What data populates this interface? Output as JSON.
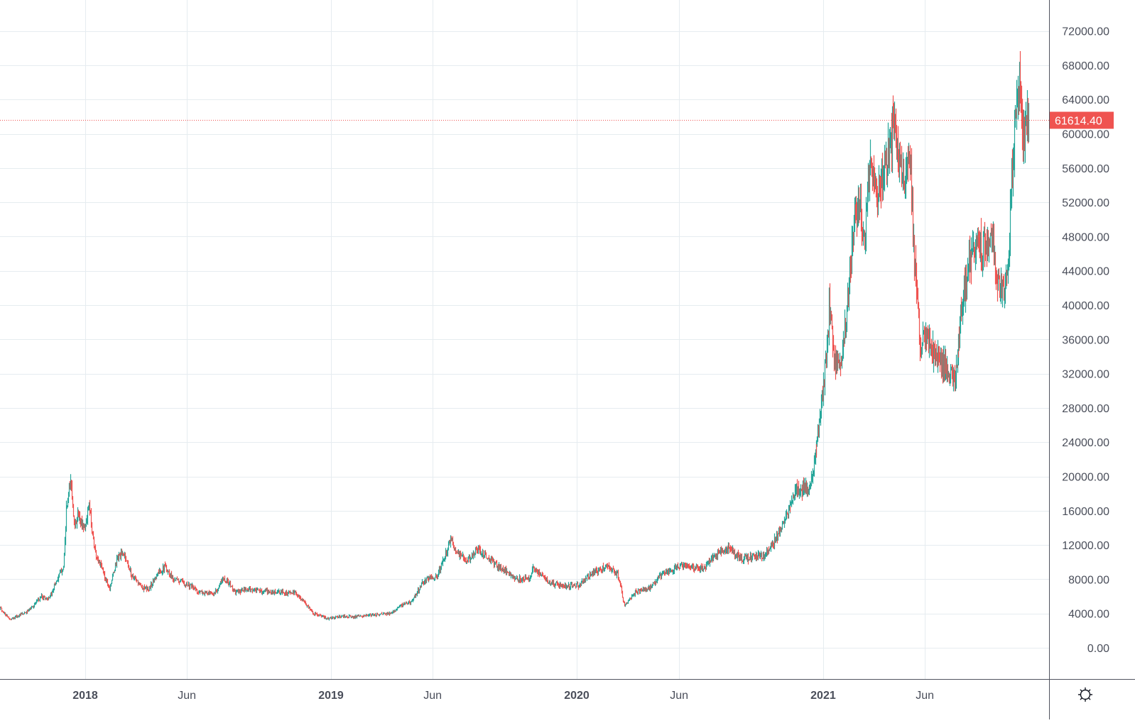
{
  "chart_data": {
    "type": "candlestick",
    "title": "",
    "xlabel": "",
    "ylabel": "",
    "interval": "1D",
    "ylim": [
      -3800,
      75600
    ],
    "grid": true,
    "legend": null,
    "y_ticks": [
      "72000.00",
      "68000.00",
      "64000.00",
      "60000.00",
      "56000.00",
      "52000.00",
      "48000.00",
      "44000.00",
      "40000.00",
      "36000.00",
      "32000.00",
      "28000.00",
      "24000.00",
      "20000.00",
      "16000.00",
      "12000.00",
      "8000.00",
      "4000.00",
      "0.00"
    ],
    "x_ticks": [
      {
        "label": "2018",
        "date": "2018-01-01",
        "bold": true
      },
      {
        "label": "Jun",
        "date": "2018-06-01",
        "bold": false
      },
      {
        "label": "2019",
        "date": "2019-01-01",
        "bold": true
      },
      {
        "label": "Jun",
        "date": "2019-06-01",
        "bold": false
      },
      {
        "label": "2020",
        "date": "2020-01-01",
        "bold": true
      },
      {
        "label": "Jun",
        "date": "2020-06-01",
        "bold": false
      },
      {
        "label": "2021",
        "date": "2021-01-01",
        "bold": true
      },
      {
        "label": "Jun",
        "date": "2021-06-01",
        "bold": false
      }
    ],
    "last_price": 61614.4,
    "last_price_label": "61614.40",
    "colors": {
      "up": "#26a69a",
      "down": "#ef5350",
      "grid": "#e6ecf0",
      "axis": "#50535e",
      "axis_text": "#4a4e5a",
      "last_price": "#ef5350",
      "background": "#ffffff"
    },
    "approx_close_series": {
      "description": "Approximate daily close path read from the chart (date, close)",
      "points": [
        [
          "2017-08-26",
          4700
        ],
        [
          "2017-09-11",
          3300
        ],
        [
          "2017-10-07",
          4200
        ],
        [
          "2017-10-28",
          6000
        ],
        [
          "2017-11-08",
          5700
        ],
        [
          "2017-11-18",
          7600
        ],
        [
          "2017-11-29",
          9500
        ],
        [
          "2017-12-04",
          16000
        ],
        [
          "2017-12-10",
          19500
        ],
        [
          "2017-12-16",
          14000
        ],
        [
          "2017-12-20",
          15500
        ],
        [
          "2017-12-31",
          14000
        ],
        [
          "2018-01-06",
          16500
        ],
        [
          "2018-01-16",
          11000
        ],
        [
          "2018-01-26",
          9000
        ],
        [
          "2018-02-06",
          7000
        ],
        [
          "2018-02-17",
          10500
        ],
        [
          "2018-02-27",
          11000
        ],
        [
          "2018-03-10",
          8500
        ],
        [
          "2018-03-26",
          7000
        ],
        [
          "2018-04-05",
          6800
        ],
        [
          "2018-04-16",
          8500
        ],
        [
          "2018-04-29",
          9500
        ],
        [
          "2018-05-12",
          8000
        ],
        [
          "2018-05-31",
          7500
        ],
        [
          "2018-06-19",
          6500
        ],
        [
          "2018-07-10",
          6200
        ],
        [
          "2018-07-26",
          8200
        ],
        [
          "2018-08-11",
          6500
        ],
        [
          "2018-09-01",
          6800
        ],
        [
          "2018-10-03",
          6500
        ],
        [
          "2018-11-09",
          6400
        ],
        [
          "2018-11-20",
          5500
        ],
        [
          "2018-12-06",
          4000
        ],
        [
          "2018-12-27",
          3400
        ],
        [
          "2019-01-17",
          3700
        ],
        [
          "2019-02-07",
          3600
        ],
        [
          "2019-02-28",
          3800
        ],
        [
          "2019-03-31",
          4000
        ],
        [
          "2019-04-11",
          4800
        ],
        [
          "2019-05-02",
          5500
        ],
        [
          "2019-05-18",
          7800
        ],
        [
          "2019-06-08",
          8500
        ],
        [
          "2019-06-27",
          12500
        ],
        [
          "2019-07-09",
          11000
        ],
        [
          "2019-07-20",
          10000
        ],
        [
          "2019-08-07",
          11500
        ],
        [
          "2019-08-26",
          10200
        ],
        [
          "2019-09-24",
          8500
        ],
        [
          "2019-10-07",
          8000
        ],
        [
          "2019-10-23",
          8200
        ],
        [
          "2019-10-28",
          9300
        ],
        [
          "2019-11-12",
          8300
        ],
        [
          "2019-11-23",
          7500
        ],
        [
          "2019-12-14",
          7200
        ],
        [
          "2020-01-04",
          7300
        ],
        [
          "2020-01-25",
          8800
        ],
        [
          "2020-02-15",
          9500
        ],
        [
          "2020-03-01",
          8500
        ],
        [
          "2020-03-12",
          5000
        ],
        [
          "2020-03-28",
          6500
        ],
        [
          "2020-04-18",
          7000
        ],
        [
          "2020-05-09",
          8800
        ],
        [
          "2020-06-04",
          9500
        ],
        [
          "2020-07-06",
          9200
        ],
        [
          "2020-07-27",
          11000
        ],
        [
          "2020-08-12",
          11600
        ],
        [
          "2020-09-02",
          10400
        ],
        [
          "2020-10-04",
          10800
        ],
        [
          "2020-10-25",
          13000
        ],
        [
          "2020-11-04",
          14500
        ],
        [
          "2020-11-20",
          18500
        ],
        [
          "2020-12-11",
          18500
        ],
        [
          "2020-12-22",
          23500
        ],
        [
          "2020-12-30",
          29000
        ],
        [
          "2021-01-07",
          36000
        ],
        [
          "2021-01-10",
          40000
        ],
        [
          "2021-01-17",
          34000
        ],
        [
          "2021-01-28",
          33000
        ],
        [
          "2021-02-07",
          41000
        ],
        [
          "2021-02-13",
          48000
        ],
        [
          "2021-02-23",
          52000
        ],
        [
          "2021-03-03",
          47000
        ],
        [
          "2021-03-11",
          57000
        ],
        [
          "2021-03-21",
          52000
        ],
        [
          "2021-04-01",
          56000
        ],
        [
          "2021-04-11",
          58000
        ],
        [
          "2021-04-14",
          63000
        ],
        [
          "2021-04-22",
          57000
        ],
        [
          "2021-05-02",
          55000
        ],
        [
          "2021-05-10",
          57500
        ],
        [
          "2021-05-16",
          45000
        ],
        [
          "2021-05-24",
          36000
        ],
        [
          "2021-06-03",
          36000
        ],
        [
          "2021-06-17",
          34000
        ],
        [
          "2021-06-30",
          33000
        ],
        [
          "2021-07-15",
          31000
        ],
        [
          "2021-07-26",
          40000
        ],
        [
          "2021-08-05",
          45000
        ],
        [
          "2021-08-16",
          47000
        ],
        [
          "2021-09-01",
          46500
        ],
        [
          "2021-09-06",
          48500
        ],
        [
          "2021-09-14",
          44000
        ],
        [
          "2021-09-22",
          42000
        ],
        [
          "2021-09-30",
          43500
        ],
        [
          "2021-10-08",
          55000
        ],
        [
          "2021-10-13",
          61000
        ],
        [
          "2021-10-20",
          65500
        ],
        [
          "2021-10-24",
          60000
        ],
        [
          "2021-11-02",
          61614.4
        ]
      ]
    },
    "notable_values": {
      "peak_2017_high": 19800,
      "low_2018_12": 3150,
      "peak_2019_06_high": 13800,
      "low_2020_03": 3900,
      "peak_2021_04_high": 64800,
      "low_2021_07": 28800,
      "peak_2021_high": 66900
    }
  },
  "price_axis": {
    "labels": [
      "72000.00",
      "68000.00",
      "64000.00",
      "60000.00",
      "56000.00",
      "52000.00",
      "48000.00",
      "44000.00",
      "40000.00",
      "36000.00",
      "32000.00",
      "28000.00",
      "24000.00",
      "20000.00",
      "16000.00",
      "12000.00",
      "8000.00",
      "4000.00",
      "0.00"
    ],
    "last_price_label": "61614.40"
  },
  "time_axis": {
    "labels": [
      "2018",
      "Jun",
      "2019",
      "Jun",
      "2020",
      "Jun",
      "2021",
      "Jun"
    ]
  },
  "controls": {
    "settings_icon": "gear-icon"
  }
}
